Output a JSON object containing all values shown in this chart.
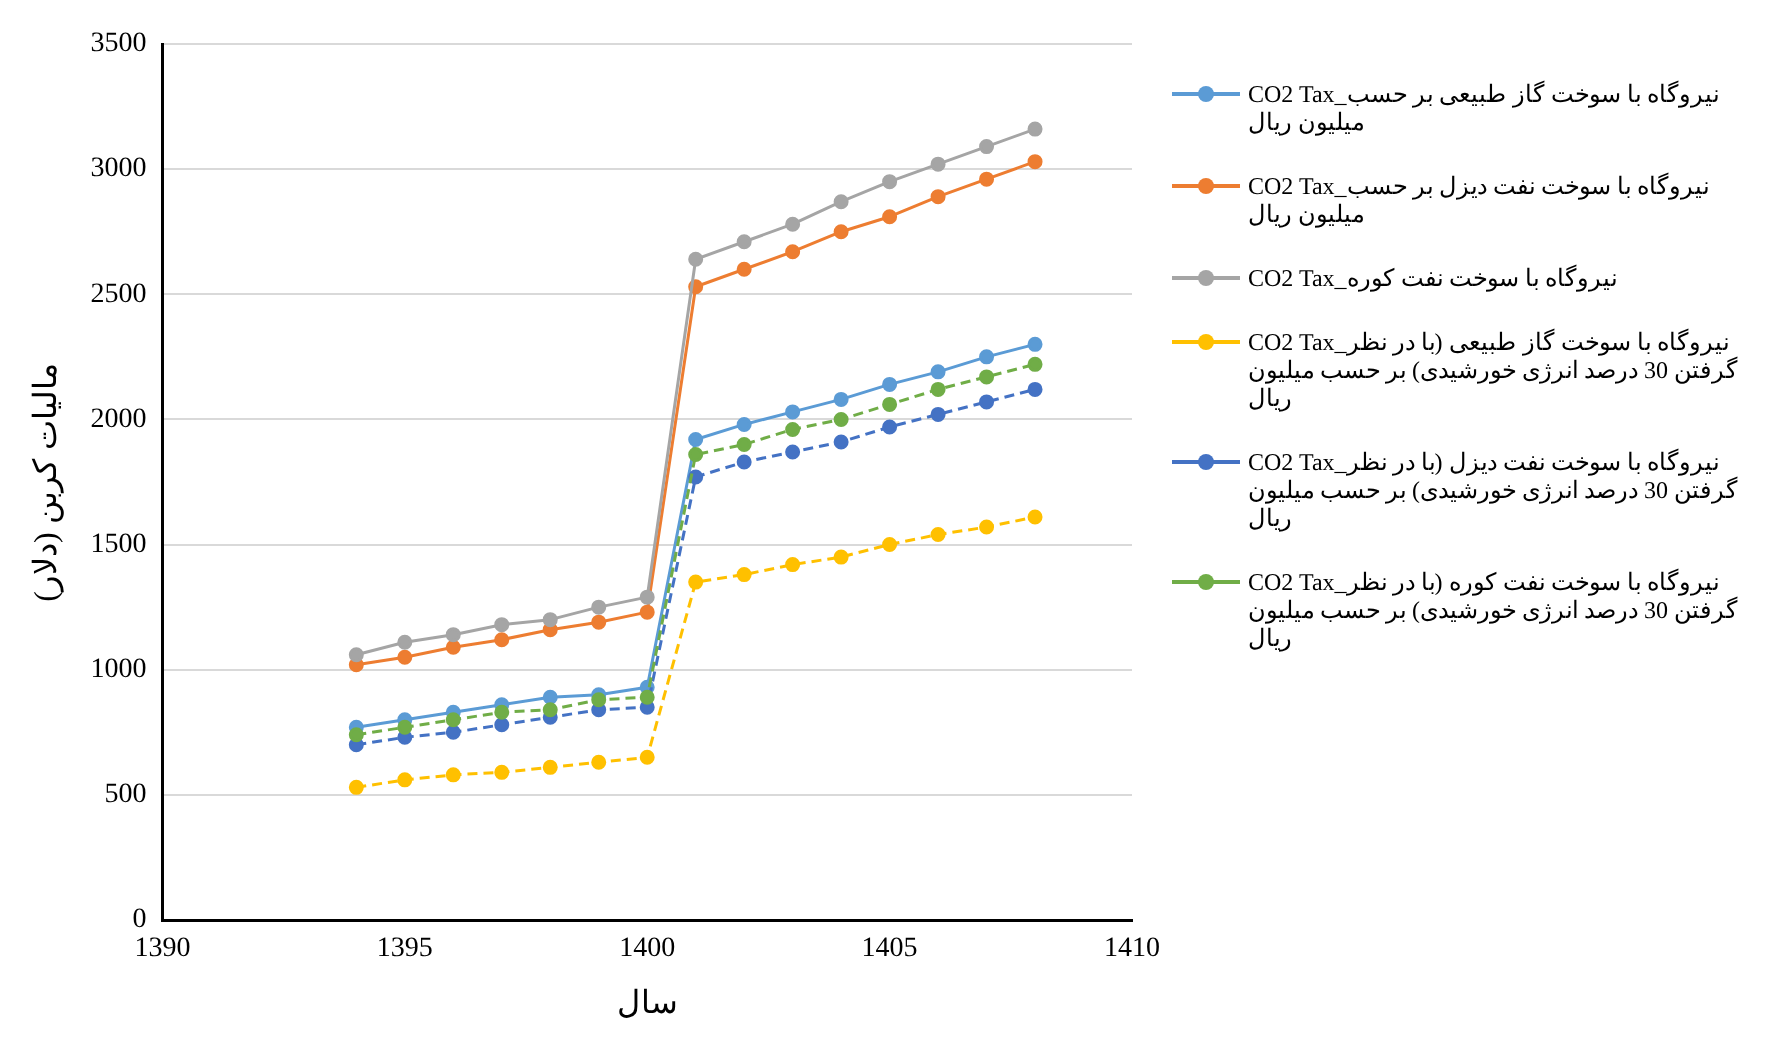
{
  "chart_data": {
    "type": "line",
    "xlabel": "سال",
    "ylabel": "مالیات کربن (دلار)",
    "x": [
      1394,
      1395,
      1396,
      1397,
      1398,
      1399,
      1400,
      1401,
      1402,
      1403,
      1404,
      1405,
      1406,
      1407,
      1408
    ],
    "series": [
      {
        "name": "CO2 Tax_نیروگاه با سوخت گاز طبیعی بر حسب میلیون ریال",
        "color": "#5b9bd5",
        "values": [
          770,
          800,
          830,
          860,
          890,
          900,
          930,
          1920,
          1980,
          2030,
          2080,
          2140,
          2190,
          2250,
          2300
        ]
      },
      {
        "name": "CO2 Tax_نیروگاه با سوخت نفت دیزل بر حسب میلیون ریال",
        "color": "#ed7d31",
        "values": [
          1020,
          1050,
          1090,
          1120,
          1160,
          1190,
          1230,
          2530,
          2600,
          2670,
          2750,
          2810,
          2890,
          2960,
          3030
        ]
      },
      {
        "name": "CO2 Tax_نیروگاه با سوخت نفت کوره",
        "color": "#a5a5a5",
        "values": [
          1060,
          1110,
          1140,
          1180,
          1200,
          1250,
          1290,
          2640,
          2710,
          2780,
          2870,
          2950,
          3020,
          3090,
          3160
        ]
      },
      {
        "name": "CO2 Tax_نیروگاه با سوخت گاز طبیعی (با در نظر گرفتن 30 درصد انرژی خورشیدی) بر حسب میلیون ریال",
        "color": "#ffc000",
        "line_style": "dashed",
        "values": [
          530,
          560,
          580,
          590,
          610,
          630,
          650,
          1350,
          1380,
          1420,
          1450,
          1500,
          1540,
          1570,
          1610
        ]
      },
      {
        "name": "CO2 Tax_نیروگاه با سوخت نفت دیزل (با در نظر گرفتن 30 درصد انرژی خورشیدی) بر حسب میلیون ریال",
        "color": "#4472c4",
        "line_style": "dashed",
        "values": [
          700,
          730,
          750,
          780,
          810,
          840,
          850,
          1770,
          1830,
          1870,
          1910,
          1970,
          2020,
          2070,
          2120
        ]
      },
      {
        "name": "CO2 Tax_نیروگاه با سوخت نفت کوره (با در نظر گرفتن 30 درصد انرژی خورشیدی) بر حسب میلیون ریال",
        "color": "#70ad47",
        "line_style": "dashed",
        "values": [
          740,
          770,
          800,
          830,
          840,
          880,
          890,
          1860,
          1900,
          1960,
          2000,
          2060,
          2120,
          2170,
          2220
        ]
      }
    ],
    "xlim": [
      1390,
      1410
    ],
    "xticks": [
      1390,
      1395,
      1400,
      1405,
      1410
    ],
    "ylim": [
      0,
      3500
    ],
    "yticks": [
      0,
      500,
      1000,
      1500,
      2000,
      2500,
      3000,
      3500
    ],
    "grid": "y",
    "legend": "right",
    "marker": "circle",
    "line_style": "solid"
  }
}
